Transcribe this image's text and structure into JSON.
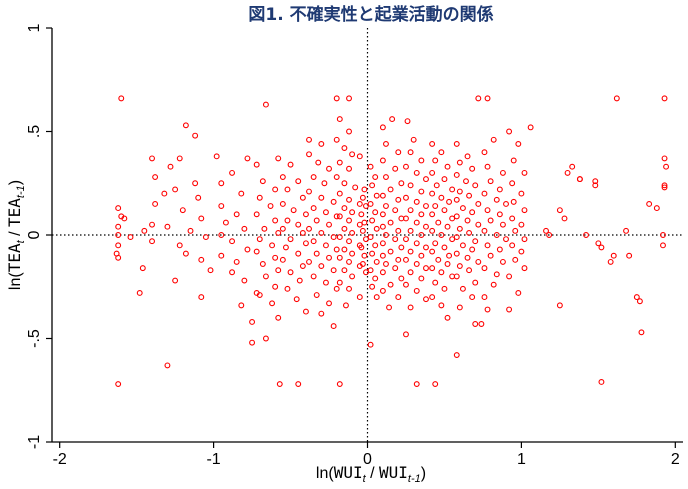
{
  "chart_data": {
    "type": "scatter",
    "title": "図1. 不確実性と起業活動の関係",
    "xlabel": {
      "prefix": "ln(",
      "num": "WUI",
      "num_sub": "t",
      "sep": " / ",
      "den": "WUI",
      "den_sub": "t-1",
      "suffix": ")"
    },
    "ylabel": {
      "prefix": "ln(",
      "num": "TEA",
      "num_sub": "t",
      "sep": " / ",
      "den": "TEA",
      "den_sub": "t-1",
      "suffix": ")"
    },
    "xlim": [
      -2.05,
      2.05
    ],
    "ylim": [
      -1.0,
      1.0
    ],
    "x_ticks": [
      -2,
      -1,
      0,
      1,
      2
    ],
    "x_tick_labels": [
      "-2",
      "-1",
      "0",
      "1",
      "2"
    ],
    "y_ticks": [
      -1,
      -0.5,
      0,
      0.5,
      1
    ],
    "y_tick_labels": [
      "-1",
      "-.5",
      "0",
      ".5",
      "1"
    ],
    "reference_lines": {
      "x": 0,
      "y": 0,
      "style": "dotted"
    },
    "marker": {
      "shape": "hollow-circle",
      "color": "#ff0000"
    },
    "points": [
      [
        -1.6,
        0.66
      ],
      [
        -1.62,
        0.13
      ],
      [
        -1.6,
        0.09
      ],
      [
        -1.58,
        0.08
      ],
      [
        -1.62,
        0.04
      ],
      [
        -1.62,
        0.0
      ],
      [
        -1.62,
        -0.05
      ],
      [
        -1.63,
        -0.09
      ],
      [
        -1.62,
        -0.11
      ],
      [
        -1.54,
        -0.01
      ],
      [
        -1.62,
        -0.72
      ],
      [
        -1.4,
        0.37
      ],
      [
        -1.38,
        0.28
      ],
      [
        -1.32,
        0.2
      ],
      [
        -1.38,
        0.15
      ],
      [
        -1.4,
        0.05
      ],
      [
        -1.45,
        0.02
      ],
      [
        -1.4,
        -0.03
      ],
      [
        -1.46,
        -0.16
      ],
      [
        -1.48,
        -0.28
      ],
      [
        -1.3,
        -0.63
      ],
      [
        -1.18,
        0.53
      ],
      [
        -1.12,
        0.48
      ],
      [
        -1.22,
        0.37
      ],
      [
        -1.28,
        0.33
      ],
      [
        -1.12,
        0.25
      ],
      [
        -1.25,
        0.22
      ],
      [
        -1.1,
        0.18
      ],
      [
        -1.2,
        0.12
      ],
      [
        -1.08,
        0.08
      ],
      [
        -1.3,
        0.04
      ],
      [
        -1.15,
        0.02
      ],
      [
        -1.05,
        -0.01
      ],
      [
        -1.22,
        -0.05
      ],
      [
        -1.18,
        -0.09
      ],
      [
        -1.08,
        -0.12
      ],
      [
        -1.02,
        -0.17
      ],
      [
        -1.25,
        -0.22
      ],
      [
        -1.08,
        -0.3
      ],
      [
        -0.98,
        0.38
      ],
      [
        -0.88,
        0.3
      ],
      [
        -0.95,
        0.25
      ],
      [
        -0.82,
        0.2
      ],
      [
        -0.95,
        0.14
      ],
      [
        -0.85,
        0.1
      ],
      [
        -0.92,
        0.06
      ],
      [
        -0.8,
        0.03
      ],
      [
        -0.95,
        0.0
      ],
      [
        -0.88,
        -0.03
      ],
      [
        -0.78,
        -0.07
      ],
      [
        -0.95,
        -0.1
      ],
      [
        -0.85,
        -0.13
      ],
      [
        -0.88,
        -0.18
      ],
      [
        -0.8,
        -0.22
      ],
      [
        -0.72,
        -0.28
      ],
      [
        -0.82,
        -0.34
      ],
      [
        -0.75,
        -0.42
      ],
      [
        -0.75,
        -0.52
      ],
      [
        -0.66,
        0.63
      ],
      [
        -0.78,
        0.37
      ],
      [
        -0.72,
        0.34
      ],
      [
        -0.68,
        0.26
      ],
      [
        -0.6,
        0.22
      ],
      [
        -0.7,
        0.18
      ],
      [
        -0.63,
        0.14
      ],
      [
        -0.72,
        0.1
      ],
      [
        -0.6,
        0.07
      ],
      [
        -0.67,
        0.03
      ],
      [
        -0.58,
        0.01
      ],
      [
        -0.7,
        -0.02
      ],
      [
        -0.62,
        -0.05
      ],
      [
        -0.72,
        -0.08
      ],
      [
        -0.6,
        -0.11
      ],
      [
        -0.68,
        -0.14
      ],
      [
        -0.58,
        -0.17
      ],
      [
        -0.66,
        -0.2
      ],
      [
        -0.6,
        -0.25
      ],
      [
        -0.7,
        -0.29
      ],
      [
        -0.62,
        -0.33
      ],
      [
        -0.58,
        -0.4
      ],
      [
        -0.66,
        -0.5
      ],
      [
        -0.58,
        0.37
      ],
      [
        -0.5,
        0.34
      ],
      [
        -0.55,
        0.28
      ],
      [
        -0.45,
        0.26
      ],
      [
        -0.52,
        0.22
      ],
      [
        -0.42,
        0.18
      ],
      [
        -0.55,
        0.15
      ],
      [
        -0.48,
        0.12
      ],
      [
        -0.4,
        0.1
      ],
      [
        -0.52,
        0.07
      ],
      [
        -0.45,
        0.05
      ],
      [
        -0.55,
        0.03
      ],
      [
        -0.42,
        0.01
      ],
      [
        -0.5,
        -0.02
      ],
      [
        -0.4,
        -0.04
      ],
      [
        -0.53,
        -0.06
      ],
      [
        -0.45,
        -0.09
      ],
      [
        -0.55,
        -0.12
      ],
      [
        -0.42,
        -0.15
      ],
      [
        -0.5,
        -0.18
      ],
      [
        -0.44,
        -0.22
      ],
      [
        -0.52,
        -0.26
      ],
      [
        -0.46,
        -0.31
      ],
      [
        -0.4,
        -0.37
      ],
      [
        -0.57,
        -0.72
      ],
      [
        -0.45,
        -0.72
      ],
      [
        -0.38,
        0.46
      ],
      [
        -0.3,
        0.44
      ],
      [
        -0.38,
        0.39
      ],
      [
        -0.32,
        0.35
      ],
      [
        -0.25,
        0.32
      ],
      [
        -0.35,
        0.28
      ],
      [
        -0.28,
        0.25
      ],
      [
        -0.38,
        0.21
      ],
      [
        -0.3,
        0.18
      ],
      [
        -0.22,
        0.16
      ],
      [
        -0.35,
        0.13
      ],
      [
        -0.27,
        0.11
      ],
      [
        -0.2,
        0.09
      ],
      [
        -0.33,
        0.07
      ],
      [
        -0.25,
        0.05
      ],
      [
        -0.38,
        0.03
      ],
      [
        -0.3,
        0.01
      ],
      [
        -0.22,
        -0.01
      ],
      [
        -0.35,
        -0.03
      ],
      [
        -0.27,
        -0.05
      ],
      [
        -0.2,
        -0.07
      ],
      [
        -0.33,
        -0.09
      ],
      [
        -0.25,
        -0.11
      ],
      [
        -0.38,
        -0.13
      ],
      [
        -0.3,
        -0.15
      ],
      [
        -0.22,
        -0.17
      ],
      [
        -0.35,
        -0.2
      ],
      [
        -0.27,
        -0.23
      ],
      [
        -0.2,
        -0.26
      ],
      [
        -0.33,
        -0.29
      ],
      [
        -0.25,
        -0.33
      ],
      [
        -0.3,
        -0.38
      ],
      [
        -0.22,
        -0.44
      ],
      [
        -0.2,
        0.66
      ],
      [
        -0.12,
        0.66
      ],
      [
        -0.18,
        0.56
      ],
      [
        -0.12,
        0.5
      ],
      [
        -0.2,
        0.46
      ],
      [
        -0.15,
        0.42
      ],
      [
        -0.1,
        0.39
      ],
      [
        -0.18,
        0.35
      ],
      [
        -0.12,
        0.32
      ],
      [
        -0.2,
        0.28
      ],
      [
        -0.15,
        0.25
      ],
      [
        -0.08,
        0.23
      ],
      [
        -0.18,
        0.2
      ],
      [
        -0.12,
        0.17
      ],
      [
        -0.05,
        0.15
      ],
      [
        -0.15,
        0.13
      ],
      [
        -0.1,
        0.11
      ],
      [
        -0.18,
        0.09
      ],
      [
        -0.12,
        0.07
      ],
      [
        -0.05,
        0.05
      ],
      [
        -0.15,
        0.03
      ],
      [
        -0.1,
        0.01
      ],
      [
        -0.18,
        -0.01
      ],
      [
        -0.12,
        -0.03
      ],
      [
        -0.05,
        -0.05
      ],
      [
        -0.15,
        -0.07
      ],
      [
        -0.1,
        -0.09
      ],
      [
        -0.18,
        -0.11
      ],
      [
        -0.12,
        -0.13
      ],
      [
        -0.05,
        -0.15
      ],
      [
        -0.15,
        -0.17
      ],
      [
        -0.1,
        -0.2
      ],
      [
        -0.18,
        -0.23
      ],
      [
        -0.12,
        -0.26
      ],
      [
        -0.05,
        -0.3
      ],
      [
        -0.14,
        -0.34
      ],
      [
        -0.18,
        -0.72
      ],
      [
        -0.05,
        0.38
      ],
      [
        -0.02,
        0.22
      ],
      [
        -0.03,
        0.18
      ],
      [
        -0.01,
        0.14
      ],
      [
        -0.04,
        0.1
      ],
      [
        -0.02,
        0.06
      ],
      [
        -0.03,
        0.02
      ],
      [
        -0.01,
        -0.02
      ],
      [
        -0.04,
        -0.06
      ],
      [
        -0.02,
        -0.1
      ],
      [
        -0.03,
        -0.14
      ],
      [
        -0.01,
        -0.18
      ],
      [
        0.02,
        0.33
      ],
      [
        0.05,
        0.28
      ],
      [
        0.03,
        0.24
      ],
      [
        0.06,
        0.19
      ],
      [
        0.02,
        0.15
      ],
      [
        0.05,
        0.11
      ],
      [
        0.03,
        0.07
      ],
      [
        0.06,
        0.03
      ],
      [
        0.02,
        -0.01
      ],
      [
        0.05,
        -0.05
      ],
      [
        0.03,
        -0.09
      ],
      [
        0.06,
        -0.13
      ],
      [
        0.02,
        -0.17
      ],
      [
        0.05,
        -0.21
      ],
      [
        0.03,
        -0.25
      ],
      [
        0.06,
        -0.3
      ],
      [
        0.02,
        -0.53
      ],
      [
        0.1,
        0.52
      ],
      [
        0.16,
        0.56
      ],
      [
        0.12,
        0.44
      ],
      [
        0.2,
        0.4
      ],
      [
        0.1,
        0.36
      ],
      [
        0.18,
        0.32
      ],
      [
        0.12,
        0.28
      ],
      [
        0.22,
        0.25
      ],
      [
        0.15,
        0.22
      ],
      [
        0.1,
        0.19
      ],
      [
        0.2,
        0.17
      ],
      [
        0.12,
        0.14
      ],
      [
        0.18,
        0.12
      ],
      [
        0.1,
        0.1
      ],
      [
        0.22,
        0.08
      ],
      [
        0.15,
        0.06
      ],
      [
        0.1,
        0.04
      ],
      [
        0.2,
        0.02
      ],
      [
        0.12,
        0.0
      ],
      [
        0.18,
        -0.02
      ],
      [
        0.1,
        -0.04
      ],
      [
        0.22,
        -0.06
      ],
      [
        0.15,
        -0.08
      ],
      [
        0.1,
        -0.1
      ],
      [
        0.2,
        -0.12
      ],
      [
        0.12,
        -0.14
      ],
      [
        0.18,
        -0.16
      ],
      [
        0.1,
        -0.18
      ],
      [
        0.22,
        -0.21
      ],
      [
        0.15,
        -0.24
      ],
      [
        0.1,
        -0.27
      ],
      [
        0.2,
        -0.3
      ],
      [
        0.14,
        -0.35
      ],
      [
        0.26,
        0.55
      ],
      [
        0.3,
        0.46
      ],
      [
        0.28,
        0.4
      ],
      [
        0.35,
        0.36
      ],
      [
        0.25,
        0.33
      ],
      [
        0.32,
        0.3
      ],
      [
        0.38,
        0.27
      ],
      [
        0.28,
        0.24
      ],
      [
        0.35,
        0.21
      ],
      [
        0.25,
        0.18
      ],
      [
        0.32,
        0.16
      ],
      [
        0.38,
        0.14
      ],
      [
        0.28,
        0.12
      ],
      [
        0.35,
        0.1
      ],
      [
        0.25,
        0.08
      ],
      [
        0.32,
        0.06
      ],
      [
        0.38,
        0.04
      ],
      [
        0.28,
        0.02
      ],
      [
        0.35,
        0.0
      ],
      [
        0.25,
        -0.02
      ],
      [
        0.32,
        -0.04
      ],
      [
        0.38,
        -0.06
      ],
      [
        0.28,
        -0.08
      ],
      [
        0.35,
        -0.1
      ],
      [
        0.25,
        -0.12
      ],
      [
        0.32,
        -0.14
      ],
      [
        0.38,
        -0.16
      ],
      [
        0.28,
        -0.18
      ],
      [
        0.35,
        -0.21
      ],
      [
        0.25,
        -0.24
      ],
      [
        0.32,
        -0.27
      ],
      [
        0.38,
        -0.31
      ],
      [
        0.28,
        -0.35
      ],
      [
        0.32,
        -0.72
      ],
      [
        0.25,
        -0.48
      ],
      [
        0.42,
        0.44
      ],
      [
        0.48,
        0.4
      ],
      [
        0.44,
        0.36
      ],
      [
        0.52,
        0.33
      ],
      [
        0.42,
        0.3
      ],
      [
        0.5,
        0.27
      ],
      [
        0.45,
        0.24
      ],
      [
        0.55,
        0.22
      ],
      [
        0.42,
        0.2
      ],
      [
        0.48,
        0.18
      ],
      [
        0.53,
        0.16
      ],
      [
        0.44,
        0.14
      ],
      [
        0.5,
        0.12
      ],
      [
        0.42,
        0.1
      ],
      [
        0.55,
        0.08
      ],
      [
        0.46,
        0.06
      ],
      [
        0.52,
        0.04
      ],
      [
        0.42,
        0.02
      ],
      [
        0.48,
        0.0
      ],
      [
        0.55,
        -0.02
      ],
      [
        0.44,
        -0.04
      ],
      [
        0.5,
        -0.06
      ],
      [
        0.42,
        -0.08
      ],
      [
        0.53,
        -0.1
      ],
      [
        0.46,
        -0.12
      ],
      [
        0.52,
        -0.14
      ],
      [
        0.42,
        -0.16
      ],
      [
        0.48,
        -0.18
      ],
      [
        0.55,
        -0.2
      ],
      [
        0.44,
        -0.23
      ],
      [
        0.5,
        -0.26
      ],
      [
        0.42,
        -0.3
      ],
      [
        0.48,
        -0.34
      ],
      [
        0.52,
        -0.4
      ],
      [
        0.44,
        -0.72
      ],
      [
        0.58,
        0.44
      ],
      [
        0.65,
        0.38
      ],
      [
        0.6,
        0.35
      ],
      [
        0.68,
        0.32
      ],
      [
        0.58,
        0.29
      ],
      [
        0.64,
        0.26
      ],
      [
        0.7,
        0.24
      ],
      [
        0.6,
        0.21
      ],
      [
        0.66,
        0.19
      ],
      [
        0.58,
        0.17
      ],
      [
        0.72,
        0.15
      ],
      [
        0.62,
        0.13
      ],
      [
        0.68,
        0.11
      ],
      [
        0.58,
        0.09
      ],
      [
        0.65,
        0.07
      ],
      [
        0.72,
        0.05
      ],
      [
        0.6,
        0.03
      ],
      [
        0.66,
        0.01
      ],
      [
        0.58,
        -0.01
      ],
      [
        0.7,
        -0.03
      ],
      [
        0.62,
        -0.05
      ],
      [
        0.68,
        -0.07
      ],
      [
        0.58,
        -0.09
      ],
      [
        0.65,
        -0.11
      ],
      [
        0.72,
        -0.13
      ],
      [
        0.6,
        -0.15
      ],
      [
        0.66,
        -0.17
      ],
      [
        0.58,
        -0.2
      ],
      [
        0.7,
        -0.23
      ],
      [
        0.62,
        -0.26
      ],
      [
        0.68,
        -0.3
      ],
      [
        0.6,
        -0.35
      ],
      [
        0.58,
        -0.58
      ],
      [
        0.72,
        0.66
      ],
      [
        0.78,
        0.66
      ],
      [
        0.76,
        0.4
      ],
      [
        0.82,
        0.46
      ],
      [
        0.78,
        0.33
      ],
      [
        0.88,
        0.3
      ],
      [
        0.8,
        0.26
      ],
      [
        0.86,
        0.22
      ],
      [
        0.76,
        0.2
      ],
      [
        0.84,
        0.17
      ],
      [
        0.9,
        0.15
      ],
      [
        0.78,
        0.12
      ],
      [
        0.86,
        0.1
      ],
      [
        0.8,
        0.07
      ],
      [
        0.88,
        0.05
      ],
      [
        0.76,
        0.02
      ],
      [
        0.84,
        0.0
      ],
      [
        0.9,
        -0.02
      ],
      [
        0.78,
        -0.05
      ],
      [
        0.86,
        -0.07
      ],
      [
        0.8,
        -0.1
      ],
      [
        0.88,
        -0.13
      ],
      [
        0.76,
        -0.16
      ],
      [
        0.84,
        -0.19
      ],
      [
        0.82,
        -0.24
      ],
      [
        0.76,
        -0.3
      ],
      [
        0.78,
        -0.36
      ],
      [
        0.74,
        -0.43
      ],
      [
        0.7,
        -0.43
      ],
      [
        0.92,
        0.5
      ],
      [
        0.98,
        0.44
      ],
      [
        1.06,
        0.52
      ],
      [
        0.95,
        0.36
      ],
      [
        1.02,
        0.3
      ],
      [
        0.94,
        0.25
      ],
      [
        1.0,
        0.2
      ],
      [
        0.95,
        0.16
      ],
      [
        1.02,
        0.12
      ],
      [
        0.94,
        0.08
      ],
      [
        1.0,
        0.05
      ],
      [
        0.96,
        0.02
      ],
      [
        1.02,
        -0.02
      ],
      [
        0.94,
        -0.05
      ],
      [
        1.0,
        -0.08
      ],
      [
        0.96,
        -0.12
      ],
      [
        1.02,
        -0.16
      ],
      [
        0.92,
        -0.2
      ],
      [
        0.98,
        -0.28
      ],
      [
        0.92,
        -0.36
      ],
      [
        1.16,
        0.02
      ],
      [
        1.18,
        0.0
      ],
      [
        1.25,
        0.12
      ],
      [
        1.28,
        0.08
      ],
      [
        1.3,
        0.3
      ],
      [
        1.33,
        0.33
      ],
      [
        1.38,
        0.27
      ],
      [
        1.42,
        0.0
      ],
      [
        1.48,
        0.26
      ],
      [
        1.48,
        0.24
      ],
      [
        1.5,
        -0.04
      ],
      [
        1.52,
        -0.06
      ],
      [
        1.58,
        -0.13
      ],
      [
        1.6,
        -0.1
      ],
      [
        1.62,
        0.66
      ],
      [
        1.68,
        0.02
      ],
      [
        1.7,
        -0.1
      ],
      [
        1.75,
        -0.3
      ],
      [
        1.77,
        -0.32
      ],
      [
        1.78,
        -0.47
      ],
      [
        1.83,
        0.15
      ],
      [
        1.88,
        0.13
      ],
      [
        1.93,
        0.66
      ],
      [
        1.93,
        0.37
      ],
      [
        1.94,
        0.33
      ],
      [
        1.93,
        0.23
      ],
      [
        1.93,
        0.24
      ],
      [
        1.92,
        0.0
      ],
      [
        1.92,
        -0.05
      ],
      [
        1.25,
        -0.34
      ],
      [
        1.52,
        -0.71
      ],
      [
        1.38,
        0.27
      ]
    ]
  }
}
